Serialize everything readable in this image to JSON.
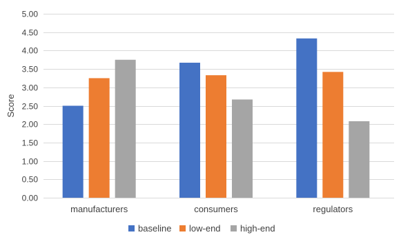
{
  "chart_data": {
    "type": "bar",
    "title": "",
    "xlabel": "",
    "ylabel": "Score",
    "categories": [
      "manufacturers",
      "consumers",
      "regulators"
    ],
    "series": [
      {
        "name": "baseline",
        "color": "#4472c4",
        "values": [
          2.5,
          3.67,
          4.33
        ]
      },
      {
        "name": "low-end",
        "color": "#ed7d31",
        "values": [
          3.25,
          3.33,
          3.42
        ]
      },
      {
        "name": "high-end",
        "color": "#a5a5a5",
        "values": [
          3.75,
          2.67,
          2.08
        ]
      }
    ],
    "ylim": [
      0,
      5
    ],
    "yticks": [
      "0.00",
      "0.50",
      "1.00",
      "1.50",
      "2.00",
      "2.50",
      "3.00",
      "3.50",
      "4.00",
      "4.50",
      "5.00"
    ],
    "grid": true,
    "legend_position": "bottom"
  }
}
